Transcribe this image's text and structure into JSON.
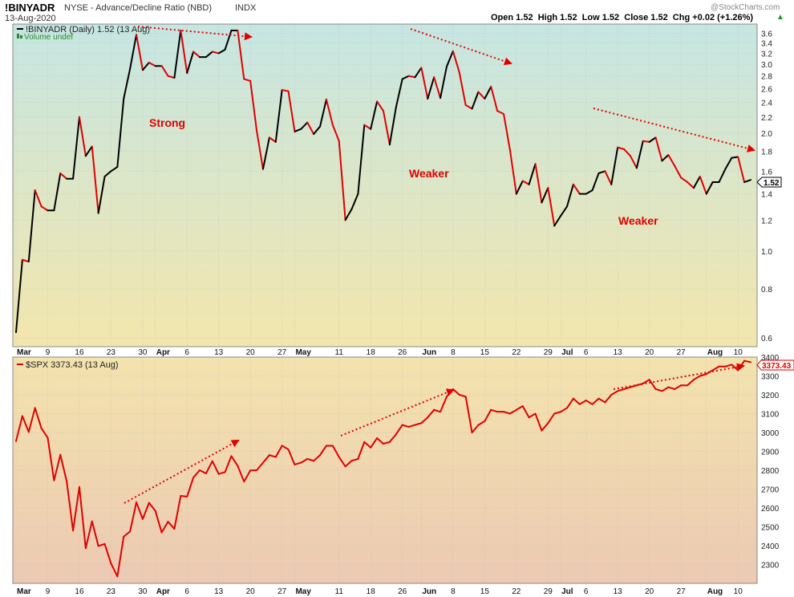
{
  "header": {
    "symbol": "!BINYADR",
    "exchange": "NYSE - Advance/Decline Ratio (NBD)",
    "type": "INDX",
    "date": "13-Aug-2020",
    "ohlc_label": "Open 1.52  High 1.52  Low 1.52  Close 1.52  Chg +0.02 (+1.26%)",
    "chg_sign": "▲",
    "watermark": "@StockCharts.com"
  },
  "colors": {
    "up": "#000000",
    "down": "#e00000",
    "arrow": "#e00000",
    "annotation": "#e00000",
    "grid": "#b9b9b9",
    "top_bg_start": "#c6e6e3",
    "top_bg_end": "#f3e6ac",
    "bottom_bg_start": "#f3e3ad",
    "bottom_bg_end": "#ecc9b3"
  },
  "x_axis": {
    "months": [
      "Mar",
      "Apr",
      "May",
      "Jun",
      "Jul",
      "Aug"
    ],
    "ticks": [
      "Mar",
      "9",
      "16",
      "23",
      "30",
      "Apr",
      "6",
      "13",
      "20",
      "27",
      "May",
      "11",
      "18",
      "26",
      "Jun",
      "8",
      "15",
      "22",
      "29",
      "Jul",
      "6",
      "13",
      "20",
      "27",
      "Aug",
      "10"
    ]
  },
  "chart_data": [
    {
      "type": "line",
      "panel": "top",
      "title": "!BINYADR (Daily) 1.52 (13 Aug)",
      "legend_volume": "Volume undef",
      "y_scale": "log",
      "ylim": [
        0.57,
        3.8
      ],
      "y_ticks": [
        "3.6",
        "3.4",
        "3.2",
        "3.0",
        "2.8",
        "2.6",
        "2.4",
        "2.2",
        "2.0",
        "1.8",
        "1.6",
        "1.4",
        "1.2",
        "1.0",
        "0.8",
        "0.6"
      ],
      "last_value": "1.52",
      "annotations": [
        "Strong",
        "Weaker",
        "Weaker"
      ],
      "values": [
        0.62,
        0.95,
        0.94,
        1.43,
        1.3,
        1.27,
        1.27,
        1.58,
        1.53,
        1.53,
        2.2,
        1.75,
        1.85,
        1.25,
        1.55,
        1.6,
        1.64,
        2.45,
        2.92,
        3.57,
        2.9,
        3.03,
        2.97,
        2.97,
        2.8,
        2.77,
        3.66,
        2.85,
        3.23,
        3.13,
        3.13,
        3.23,
        3.2,
        3.27,
        3.66,
        3.66,
        2.75,
        2.72,
        2.03,
        1.62,
        1.95,
        1.9,
        2.58,
        2.56,
        2.02,
        2.05,
        2.13,
        1.99,
        2.08,
        2.44,
        2.1,
        1.91,
        1.2,
        1.28,
        1.4,
        2.1,
        2.05,
        2.41,
        2.28,
        1.87,
        2.33,
        2.75,
        2.8,
        2.78,
        2.94,
        2.45,
        2.78,
        2.46,
        2.96,
        3.24,
        2.86,
        2.36,
        2.31,
        2.55,
        2.45,
        2.63,
        2.28,
        2.24,
        1.81,
        1.4,
        1.51,
        1.48,
        1.67,
        1.33,
        1.45,
        1.16,
        1.23,
        1.3,
        1.48,
        1.4,
        1.4,
        1.43,
        1.58,
        1.6,
        1.48,
        1.84,
        1.82,
        1.75,
        1.63,
        1.91,
        1.9,
        1.95,
        1.7,
        1.76,
        1.65,
        1.54,
        1.5,
        1.45,
        1.55,
        1.4,
        1.5,
        1.5,
        1.62,
        1.73,
        1.74,
        1.5,
        1.52
      ]
    },
    {
      "type": "line",
      "panel": "bottom",
      "title": "$SPX 3373.43 (13 Aug)",
      "ylim": [
        2200,
        3400
      ],
      "y_ticks": [
        "3400",
        "3300",
        "3200",
        "3100",
        "3000",
        "2900",
        "2800",
        "2700",
        "2600",
        "2500",
        "2400",
        "2300"
      ],
      "last_value": "3373.43",
      "values": [
        2954,
        3087,
        3003,
        3130,
        3023,
        2972,
        2746,
        2882,
        2741,
        2480,
        2711,
        2386,
        2529,
        2398,
        2409,
        2305,
        2237,
        2448,
        2475,
        2630,
        2541,
        2627,
        2584,
        2470,
        2527,
        2489,
        2664,
        2660,
        2761,
        2800,
        2783,
        2848,
        2780,
        2790,
        2875,
        2823,
        2740,
        2799,
        2800,
        2840,
        2880,
        2870,
        2930,
        2910,
        2830,
        2840,
        2860,
        2850,
        2880,
        2930,
        2930,
        2870,
        2820,
        2850,
        2860,
        2950,
        2920,
        2970,
        2940,
        2950,
        2990,
        3040,
        3030,
        3040,
        3050,
        3080,
        3120,
        3110,
        3190,
        3230,
        3200,
        3190,
        3000,
        3040,
        3060,
        3120,
        3110,
        3110,
        3100,
        3120,
        3140,
        3080,
        3100,
        3010,
        3050,
        3100,
        3110,
        3130,
        3180,
        3150,
        3170,
        3150,
        3180,
        3160,
        3200,
        3220,
        3230,
        3240,
        3250,
        3260,
        3280,
        3230,
        3220,
        3240,
        3230,
        3250,
        3250,
        3280,
        3300,
        3310,
        3330,
        3350,
        3350,
        3360,
        3330,
        3380,
        3373
      ]
    }
  ]
}
